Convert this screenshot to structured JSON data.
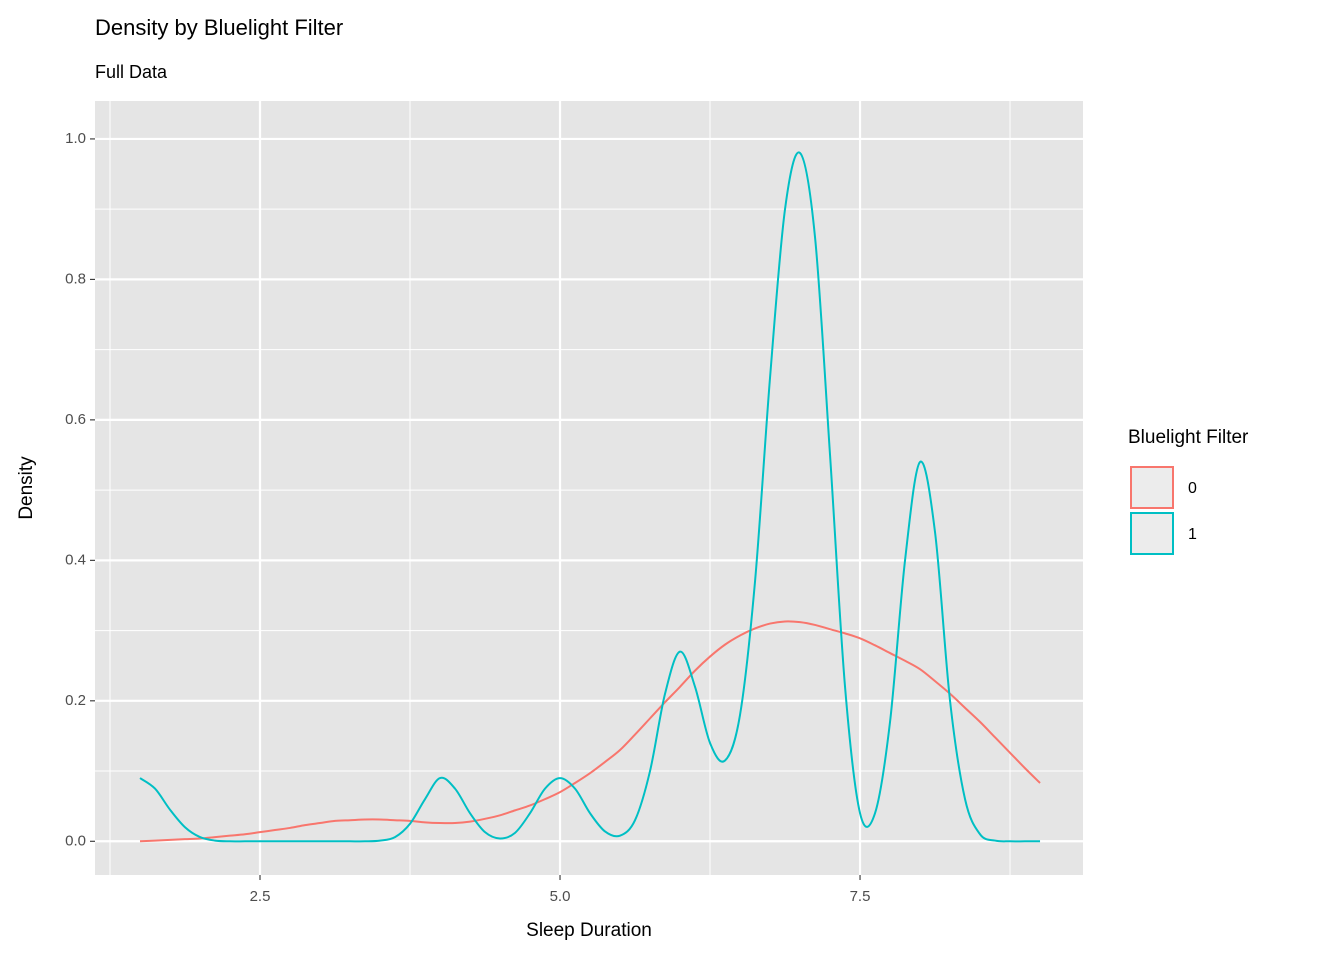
{
  "chart_data": {
    "type": "density",
    "title": "Density by Bluelight Filter",
    "subtitle": "Full Data",
    "x_label": "Sleep Duration",
    "y_label": "Density",
    "legend_title": "Bluelight Filter",
    "legend_position": "right",
    "grid": true,
    "xlim": [
      1.125,
      9.358
    ],
    "ylim": [
      -0.048,
      1.054
    ],
    "xticks": [
      {
        "value": 2.5,
        "label": "2.5"
      },
      {
        "value": 5,
        "label": "5.0"
      },
      {
        "value": 7.5,
        "label": "7.5"
      }
    ],
    "yticks": [
      {
        "value": 0,
        "label": "0.0"
      },
      {
        "value": 0.2,
        "label": "0.2"
      },
      {
        "value": 0.4,
        "label": "0.4"
      },
      {
        "value": 0.6,
        "label": "0.6"
      },
      {
        "value": 0.8,
        "label": "0.8"
      },
      {
        "value": 1,
        "label": "1.0"
      }
    ],
    "x_minor_grid": [
      1.25,
      3.75,
      6.25,
      8.75
    ],
    "y_minor_grid": [
      0.1,
      0.3,
      0.5,
      0.7,
      0.9
    ],
    "x": [
      1.5,
      1.625,
      1.75,
      1.875,
      2.0,
      2.125,
      2.25,
      2.375,
      2.5,
      2.625,
      2.75,
      2.875,
      3.0,
      3.125,
      3.25,
      3.375,
      3.5,
      3.625,
      3.75,
      3.875,
      4.0,
      4.125,
      4.25,
      4.375,
      4.5,
      4.625,
      4.75,
      4.875,
      5.0,
      5.125,
      5.25,
      5.375,
      5.5,
      5.625,
      5.75,
      5.875,
      6.0,
      6.125,
      6.25,
      6.375,
      6.5,
      6.625,
      6.75,
      6.875,
      7.0,
      7.125,
      7.25,
      7.375,
      7.5,
      7.625,
      7.75,
      7.875,
      8.0,
      8.125,
      8.25,
      8.375,
      8.5,
      8.625,
      8.75,
      8.875,
      9.0
    ],
    "series": [
      {
        "name": "0",
        "color": "#f8766d",
        "values": [
          0.0,
          0.001,
          0.002,
          0.003,
          0.004,
          0.006,
          0.008,
          0.01,
          0.013,
          0.016,
          0.019,
          0.023,
          0.026,
          0.029,
          0.03,
          0.031,
          0.031,
          0.03,
          0.029,
          0.027,
          0.026,
          0.026,
          0.028,
          0.032,
          0.037,
          0.044,
          0.051,
          0.06,
          0.07,
          0.083,
          0.097,
          0.113,
          0.13,
          0.152,
          0.175,
          0.198,
          0.22,
          0.243,
          0.263,
          0.28,
          0.293,
          0.303,
          0.31,
          0.313,
          0.312,
          0.308,
          0.302,
          0.296,
          0.289,
          0.279,
          0.268,
          0.257,
          0.245,
          0.228,
          0.21,
          0.19,
          0.17,
          0.148,
          0.126,
          0.104,
          0.083
        ]
      },
      {
        "name": "1",
        "color": "#00bfc4",
        "values": [
          0.09,
          0.075,
          0.045,
          0.02,
          0.006,
          0.001,
          0,
          0,
          0,
          0,
          0,
          0,
          0,
          0,
          0,
          0,
          0.001,
          0.006,
          0.025,
          0.06,
          0.09,
          0.075,
          0.04,
          0.013,
          0.004,
          0.012,
          0.04,
          0.075,
          0.09,
          0.075,
          0.04,
          0.014,
          0.008,
          0.03,
          0.1,
          0.21,
          0.27,
          0.22,
          0.14,
          0.115,
          0.18,
          0.37,
          0.66,
          0.9,
          0.98,
          0.86,
          0.55,
          0.22,
          0.04,
          0.04,
          0.17,
          0.4,
          0.54,
          0.44,
          0.2,
          0.06,
          0.01,
          0.001,
          0,
          0,
          0
        ]
      }
    ]
  }
}
